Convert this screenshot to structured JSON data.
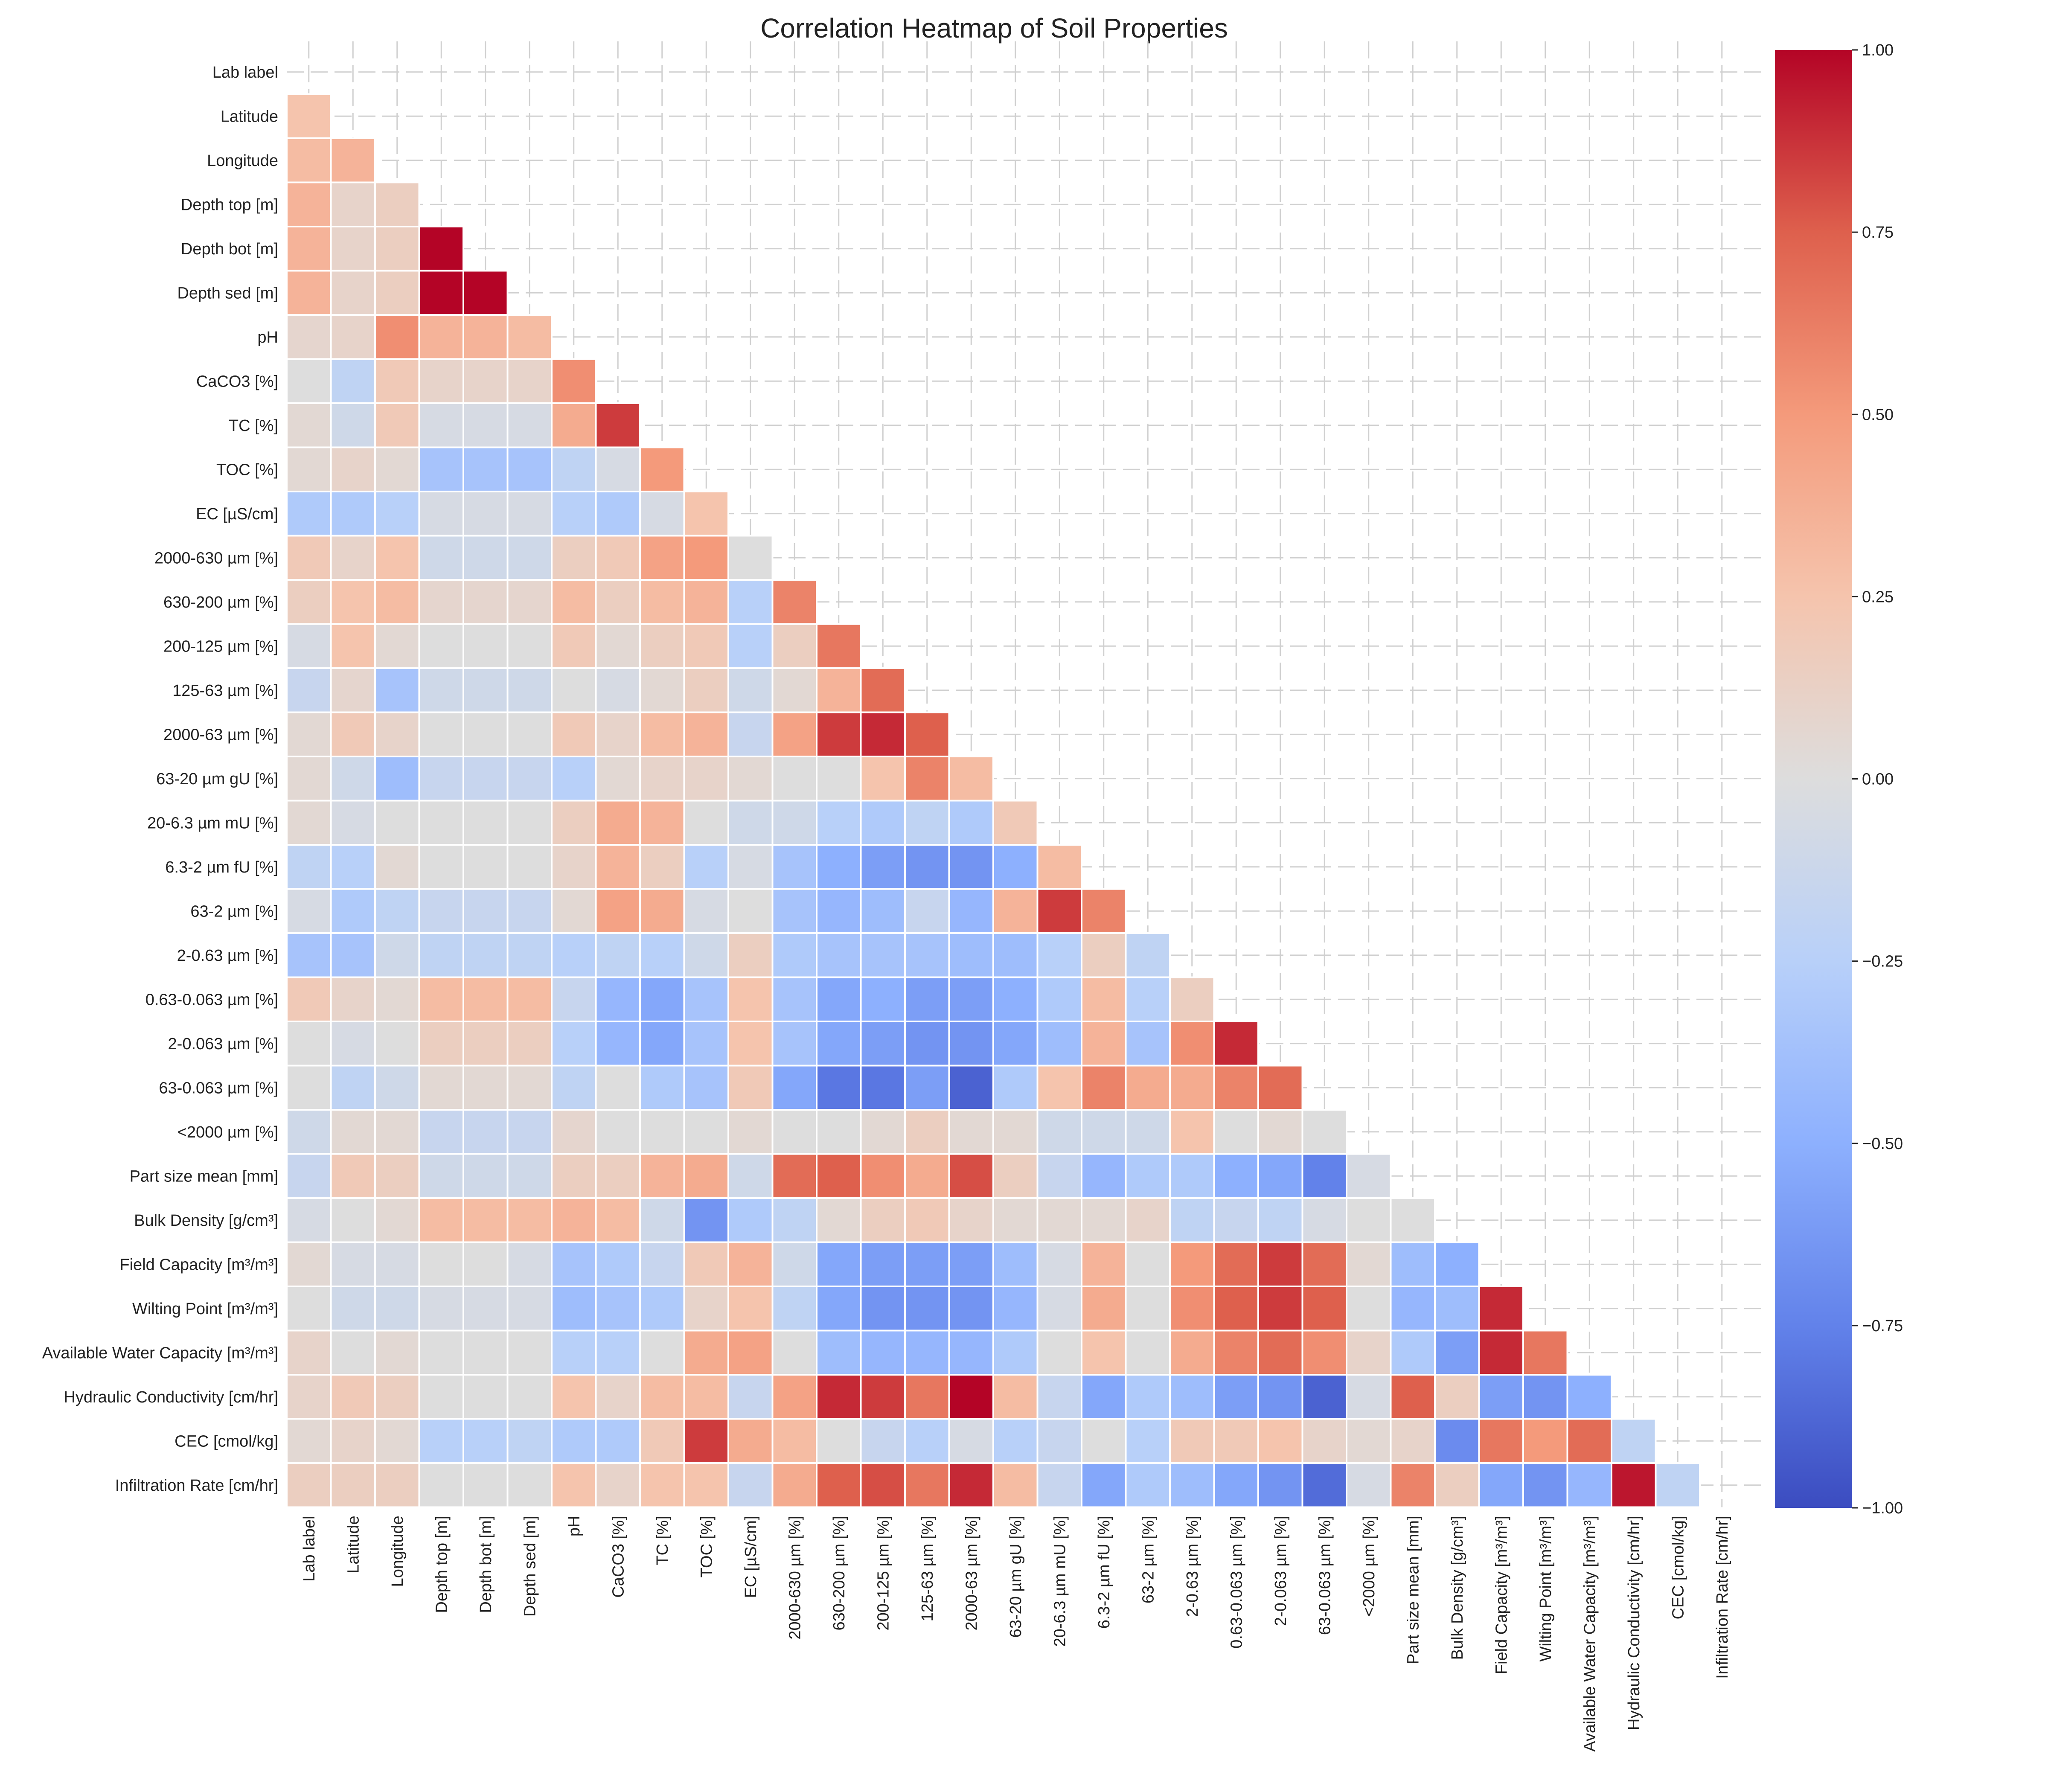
{
  "chart_data": {
    "type": "heatmap",
    "title": "Correlation Heatmap of Soil Properties",
    "variables": [
      "Lab label",
      "Latitude",
      "Longitude",
      "Depth top [m]",
      "Depth bot [m]",
      "Depth sed [m]",
      "pH",
      "CaCO3 [%]",
      "TC [%]",
      "TOC [%]",
      "EC [µS/cm]",
      "2000-630 µm [%]",
      "630-200 µm [%]",
      "200-125 µm [%]",
      "125-63 µm [%]",
      "2000-63 µm [%]",
      "63-20 µm gU [%]",
      "20-6.3 µm mU [%]",
      "6.3-2 µm fU [%]",
      "63-2 µm [%]",
      "2-0.63 µm [%]",
      "0.63-0.063 µm [%]",
      "2-0.063 µm [%]",
      "63-0.063 µm [%]",
      "<2000 µm [%]",
      "Part size mean [mm]",
      "Bulk Density [g/cm³]",
      "Field Capacity [m³/m³]",
      "Wilting Point [m³/m³]",
      "Available Water Capacity [m³/m³]",
      "Hydraulic Conductivity [cm/hr]",
      "CEC [cmol/kg]",
      "Infiltration Rate [cm/hr]"
    ],
    "mask": "upper-triangle-and-diagonal",
    "colormap": "coolwarm",
    "vmin": -1.0,
    "vmax": 1.0,
    "colorbar_ticks": [
      "1.00",
      "0.75",
      "0.50",
      "0.25",
      "0.00",
      "−0.25",
      "−0.50",
      "−0.75",
      "−1.00"
    ],
    "colorbar_tick_values": [
      1.0,
      0.75,
      0.5,
      0.25,
      0.0,
      -0.25,
      -0.5,
      -0.75,
      -1.0
    ],
    "grid": true,
    "lower_triangle_values": [
      [],
      [
        0.25
      ],
      [
        0.3,
        0.35
      ],
      [
        0.35,
        0.1,
        0.15
      ],
      [
        0.35,
        0.1,
        0.15,
        1.0
      ],
      [
        0.35,
        0.1,
        0.15,
        1.0,
        1.0
      ],
      [
        0.08,
        0.1,
        0.55,
        0.35,
        0.35,
        0.3
      ],
      [
        0.0,
        -0.2,
        0.2,
        0.1,
        0.1,
        0.1,
        0.55
      ],
      [
        0.05,
        -0.1,
        0.2,
        -0.05,
        -0.05,
        -0.05,
        0.4,
        0.85
      ],
      [
        0.05,
        0.1,
        0.05,
        -0.35,
        -0.35,
        -0.35,
        -0.2,
        -0.05,
        0.5
      ],
      [
        -0.3,
        -0.3,
        -0.25,
        -0.05,
        -0.05,
        -0.05,
        -0.25,
        -0.3,
        -0.05,
        0.25
      ],
      [
        0.2,
        0.1,
        0.25,
        -0.1,
        -0.1,
        -0.1,
        0.15,
        0.2,
        0.45,
        0.5,
        0.0
      ],
      [
        0.15,
        0.25,
        0.3,
        0.08,
        0.08,
        0.08,
        0.3,
        0.15,
        0.3,
        0.35,
        -0.25,
        0.6
      ],
      [
        -0.05,
        0.25,
        0.05,
        0.0,
        0.0,
        0.0,
        0.2,
        0.05,
        0.15,
        0.2,
        -0.25,
        0.15,
        0.65
      ],
      [
        -0.15,
        0.08,
        -0.35,
        -0.1,
        -0.1,
        -0.1,
        0.0,
        -0.05,
        0.05,
        0.15,
        -0.1,
        0.05,
        0.35,
        0.7
      ],
      [
        0.05,
        0.2,
        0.1,
        0.0,
        0.0,
        0.0,
        0.2,
        0.1,
        0.3,
        0.35,
        -0.15,
        0.45,
        0.85,
        0.9,
        0.75
      ],
      [
        0.05,
        -0.1,
        -0.4,
        -0.15,
        -0.15,
        -0.15,
        -0.25,
        0.05,
        0.1,
        0.1,
        0.05,
        0.0,
        0.0,
        0.25,
        0.6,
        0.3
      ],
      [
        0.05,
        -0.05,
        0.0,
        0.0,
        0.0,
        0.0,
        0.15,
        0.4,
        0.35,
        0.0,
        -0.1,
        -0.1,
        -0.25,
        -0.3,
        -0.2,
        -0.3,
        0.2
      ],
      [
        -0.2,
        -0.25,
        0.05,
        0.0,
        0.0,
        0.0,
        0.1,
        0.35,
        0.15,
        -0.25,
        -0.05,
        -0.35,
        -0.5,
        -0.6,
        -0.65,
        -0.65,
        -0.5,
        0.3
      ],
      [
        -0.05,
        -0.3,
        -0.2,
        -0.15,
        -0.15,
        -0.15,
        0.05,
        0.45,
        0.4,
        -0.05,
        0.0,
        -0.35,
        -0.45,
        -0.4,
        -0.15,
        -0.45,
        0.35,
        0.85,
        0.6
      ],
      [
        -0.35,
        -0.35,
        -0.1,
        -0.2,
        -0.2,
        -0.2,
        -0.25,
        -0.2,
        -0.25,
        -0.1,
        0.15,
        -0.3,
        -0.35,
        -0.35,
        -0.35,
        -0.4,
        -0.4,
        -0.25,
        0.15,
        -0.2
      ],
      [
        0.2,
        0.1,
        0.05,
        0.3,
        0.3,
        0.3,
        -0.15,
        -0.45,
        -0.55,
        -0.35,
        0.25,
        -0.35,
        -0.55,
        -0.5,
        -0.6,
        -0.6,
        -0.5,
        -0.3,
        0.3,
        -0.25,
        0.15
      ],
      [
        0.0,
        -0.05,
        0.0,
        0.15,
        0.15,
        0.15,
        -0.25,
        -0.45,
        -0.55,
        -0.35,
        0.25,
        -0.35,
        -0.55,
        -0.6,
        -0.65,
        -0.65,
        -0.55,
        -0.4,
        0.35,
        -0.35,
        0.55,
        0.9
      ],
      [
        0.0,
        -0.2,
        -0.1,
        0.05,
        0.05,
        0.05,
        -0.2,
        0.0,
        -0.3,
        -0.35,
        0.2,
        -0.55,
        -0.8,
        -0.8,
        -0.6,
        -0.9,
        -0.3,
        0.25,
        0.6,
        0.4,
        0.4,
        0.6,
        0.7
      ],
      [
        -0.1,
        0.05,
        0.05,
        -0.15,
        -0.15,
        -0.15,
        0.08,
        0.0,
        0.0,
        0.0,
        0.05,
        0.0,
        0.0,
        0.05,
        0.15,
        0.05,
        0.05,
        -0.1,
        -0.1,
        -0.1,
        0.25,
        0.0,
        0.05,
        0.0
      ],
      [
        -0.15,
        0.2,
        0.15,
        -0.1,
        -0.1,
        -0.1,
        0.15,
        0.15,
        0.35,
        0.4,
        -0.1,
        0.7,
        0.75,
        0.55,
        0.4,
        0.8,
        0.15,
        -0.15,
        -0.45,
        -0.3,
        -0.3,
        -0.5,
        -0.55,
        -0.75,
        -0.05
      ],
      [
        -0.05,
        0.0,
        0.05,
        0.3,
        0.3,
        0.3,
        0.35,
        0.3,
        -0.1,
        -0.65,
        -0.3,
        -0.2,
        0.05,
        0.15,
        0.2,
        0.1,
        0.05,
        0.05,
        0.05,
        0.1,
        -0.2,
        -0.15,
        -0.2,
        -0.05,
        0.0,
        0.0
      ],
      [
        0.05,
        -0.05,
        -0.05,
        0.0,
        0.0,
        -0.05,
        -0.35,
        -0.3,
        -0.15,
        0.2,
        0.35,
        -0.1,
        -0.55,
        -0.6,
        -0.6,
        -0.6,
        -0.4,
        -0.05,
        0.35,
        0.0,
        0.5,
        0.7,
        0.85,
        0.7,
        0.05,
        -0.4,
        -0.5
      ],
      [
        0.0,
        -0.1,
        -0.1,
        -0.05,
        -0.05,
        -0.05,
        -0.4,
        -0.35,
        -0.3,
        0.1,
        0.25,
        -0.2,
        -0.55,
        -0.65,
        -0.65,
        -0.65,
        -0.45,
        -0.05,
        0.4,
        0.0,
        0.55,
        0.75,
        0.85,
        0.75,
        0.0,
        -0.45,
        -0.4,
        0.9
      ],
      [
        0.1,
        0.0,
        0.05,
        0.0,
        0.0,
        0.0,
        -0.25,
        -0.25,
        0.0,
        0.4,
        0.45,
        0.0,
        -0.4,
        -0.45,
        -0.45,
        -0.45,
        -0.3,
        0.0,
        0.25,
        0.0,
        0.4,
        0.6,
        0.7,
        0.55,
        0.1,
        -0.3,
        -0.6,
        0.9,
        0.65
      ],
      [
        0.1,
        0.2,
        0.15,
        0.0,
        0.0,
        0.0,
        0.25,
        0.1,
        0.3,
        0.3,
        -0.15,
        0.45,
        0.9,
        0.85,
        0.65,
        1.0,
        0.3,
        -0.15,
        -0.55,
        -0.3,
        -0.4,
        -0.6,
        -0.65,
        -0.9,
        -0.05,
        0.75,
        0.15,
        -0.6,
        -0.65,
        -0.5
      ],
      [
        0.05,
        0.1,
        0.05,
        -0.25,
        -0.25,
        -0.2,
        -0.3,
        -0.3,
        0.2,
        0.85,
        0.4,
        0.3,
        0.0,
        -0.15,
        -0.25,
        -0.05,
        -0.25,
        -0.15,
        0.0,
        -0.25,
        0.2,
        0.2,
        0.25,
        0.1,
        0.05,
        0.1,
        -0.7,
        0.65,
        0.5,
        0.7,
        -0.2
      ],
      [
        0.15,
        0.15,
        0.15,
        0.0,
        0.0,
        0.0,
        0.25,
        0.1,
        0.25,
        0.25,
        -0.15,
        0.4,
        0.75,
        0.8,
        0.65,
        0.9,
        0.3,
        -0.15,
        -0.55,
        -0.3,
        -0.4,
        -0.55,
        -0.65,
        -0.85,
        -0.05,
        0.6,
        0.15,
        -0.55,
        -0.65,
        -0.45,
        0.95,
        -0.2
      ]
    ]
  }
}
